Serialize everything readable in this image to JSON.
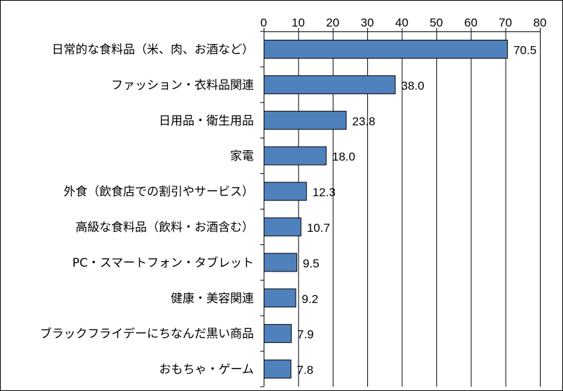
{
  "chart_data": {
    "type": "bar",
    "orientation": "horizontal",
    "categories": [
      "日常的な食料品（米、肉、お酒など）",
      "ファッション・衣料品関連",
      "日用品・衛生用品",
      "家電",
      "外食（飲食店での割引やサービス）",
      "高級な食料品（飲料・お酒含む）",
      "PC・スマートフォン・タブレット",
      "健康・美容関連",
      "ブラックフライデーにちなんだ黒い商品",
      "おもちゃ・ゲーム"
    ],
    "values": [
      70.5,
      38.0,
      23.8,
      18.0,
      12.3,
      10.7,
      9.5,
      9.2,
      7.9,
      7.8
    ],
    "data_labels": [
      "70.5",
      "38.0",
      "23.8",
      "18.0",
      "12.3",
      "10.7",
      "9.5",
      "9.2",
      "7.9",
      "7.8"
    ],
    "xlim": [
      0,
      80
    ],
    "x_ticks": [
      "0",
      "10",
      "20",
      "30",
      "40",
      "50",
      "60",
      "70",
      "80"
    ],
    "axis_position": "top",
    "grid": true,
    "legend": "none",
    "bar_color": "#4f81bd",
    "bar_border_color": "#000000",
    "grid_color": "#000000"
  }
}
